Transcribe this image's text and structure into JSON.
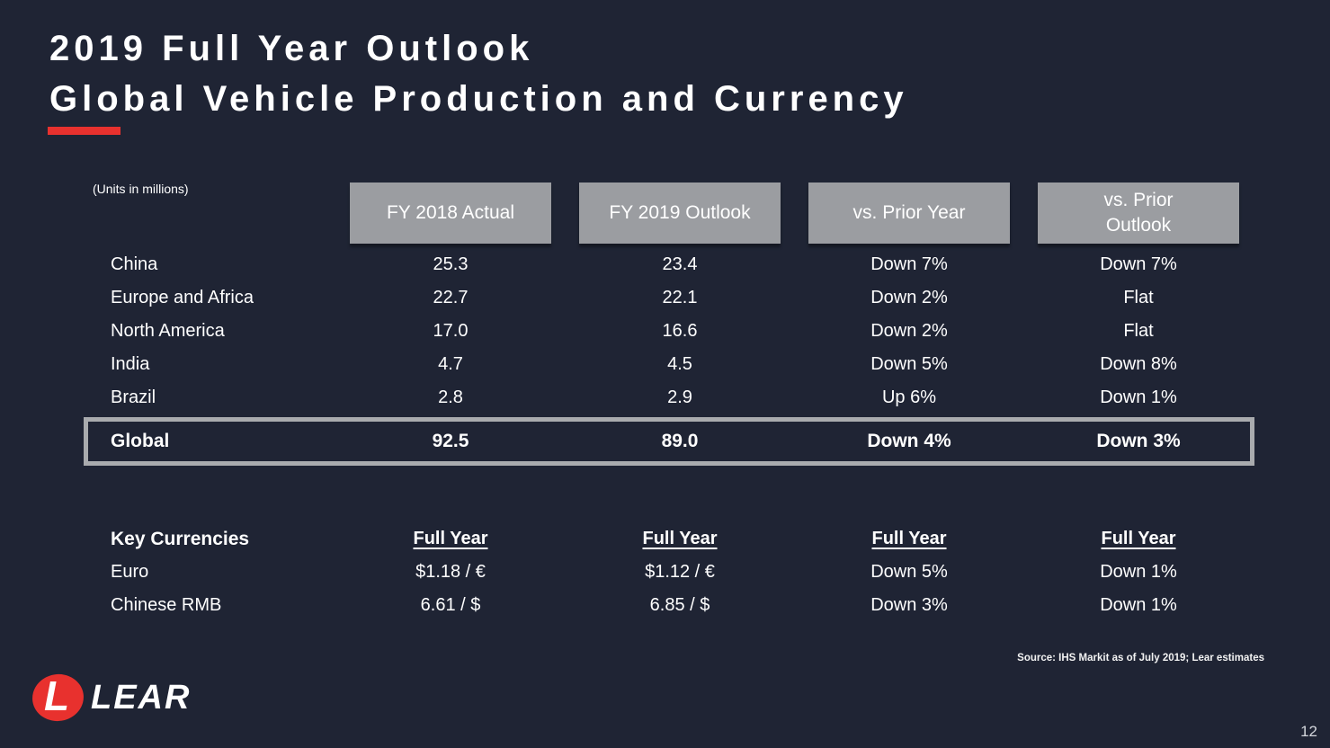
{
  "slide": {
    "title_line1": "2019 Full Year Outlook",
    "title_line2": "Global Vehicle Production and Currency",
    "units_note": "(Units in millions)",
    "source_note": "Source: IHS Markit as of July 2019; Lear estimates",
    "page_number": "12",
    "logo": {
      "text": "LEAR",
      "mark_letter": "L"
    }
  },
  "production_table": {
    "column_headers": [
      "FY 2018 Actual",
      "FY 2019 Outlook",
      "vs. Prior Year",
      "vs. Prior Outlook"
    ],
    "rows": [
      {
        "region": "China",
        "fy2018_actual": "25.3",
        "fy2019_outlook": "23.4",
        "vs_prior_year": "Down 7%",
        "vs_prior_outlook": "Down 7%"
      },
      {
        "region": "Europe and Africa",
        "fy2018_actual": "22.7",
        "fy2019_outlook": "22.1",
        "vs_prior_year": "Down 2%",
        "vs_prior_outlook": "Flat"
      },
      {
        "region": "North America",
        "fy2018_actual": "17.0",
        "fy2019_outlook": "16.6",
        "vs_prior_year": "Down 2%",
        "vs_prior_outlook": "Flat"
      },
      {
        "region": "India",
        "fy2018_actual": "4.7",
        "fy2019_outlook": "4.5",
        "vs_prior_year": "Down 5%",
        "vs_prior_outlook": "Down 8%"
      },
      {
        "region": "Brazil",
        "fy2018_actual": "2.8",
        "fy2019_outlook": "2.9",
        "vs_prior_year": "Up 6%",
        "vs_prior_outlook": "Down 1%"
      }
    ],
    "total_row": {
      "region": "Global",
      "fy2018_actual": "92.5",
      "fy2019_outlook": "89.0",
      "vs_prior_year": "Down 4%",
      "vs_prior_outlook": "Down 3%"
    }
  },
  "currency_table": {
    "section_title": "Key Currencies",
    "column_header": "Full Year",
    "rows": [
      {
        "currency": "Euro",
        "fy2018_actual": "$1.18 / €",
        "fy2019_outlook": "$1.12 / €",
        "vs_prior_year": "Down 5%",
        "vs_prior_outlook": "Down 1%"
      },
      {
        "currency": "Chinese RMB",
        "fy2018_actual": "6.61 / $",
        "fy2019_outlook": "6.85 / $",
        "vs_prior_year": "Down 3%",
        "vs_prior_outlook": "Down 1%"
      }
    ]
  },
  "colors": {
    "background": "#1f2434",
    "accent_red": "#e8312e",
    "header_gray": "#9b9da1",
    "total_border_gray": "#a9abae",
    "text": "#ffffff"
  }
}
